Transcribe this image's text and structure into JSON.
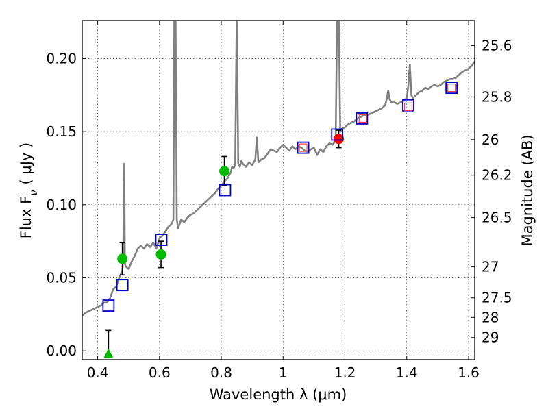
{
  "chart_data": {
    "type": "scatter",
    "xlabel": "Wavelength  λ (μm)",
    "ylabel": "Flux  F",
    "ylabel_sub": "ν",
    "ylabel_unit": "( μJy )",
    "y2label": "Magnitude (AB)",
    "xlim": [
      0.35,
      1.62
    ],
    "ylim": [
      -0.006,
      0.226
    ],
    "grid": true,
    "x_ticks": [
      0.4,
      0.6,
      0.8,
      1.0,
      1.2,
      1.4,
      1.6
    ],
    "x_tick_labels": [
      "0.4",
      "0.6",
      "0.8",
      "1",
      "1.2",
      "1.4",
      "1.6"
    ],
    "y_ticks": [
      0.0,
      0.05,
      0.1,
      0.15,
      0.2
    ],
    "y_tick_labels": [
      "0.00",
      "0.05",
      "0.10",
      "0.15",
      "0.20"
    ],
    "y2_tick_labels": [
      "25.6",
      "25.8",
      "26",
      "26.2",
      "26.5",
      "27",
      "27.5",
      "28",
      "29"
    ],
    "colors": {
      "spectrum": "#808080",
      "green": "#00bb00",
      "red": "#ff0000",
      "blue_square": "#0000cc",
      "red_square": "#ff4444",
      "errorbar": "#000000"
    },
    "series": [
      {
        "name": "model spectrum",
        "kind": "line",
        "x": [
          0.35,
          0.36,
          0.37,
          0.38,
          0.39,
          0.4,
          0.41,
          0.42,
          0.43,
          0.44,
          0.45,
          0.46,
          0.47,
          0.48,
          0.483,
          0.486,
          0.488,
          0.49,
          0.5,
          0.51,
          0.52,
          0.53,
          0.54,
          0.55,
          0.56,
          0.57,
          0.58,
          0.59,
          0.6,
          0.61,
          0.62,
          0.63,
          0.64,
          0.645,
          0.648,
          0.652,
          0.656,
          0.66,
          0.664,
          0.67,
          0.68,
          0.69,
          0.7,
          0.71,
          0.72,
          0.73,
          0.74,
          0.75,
          0.76,
          0.77,
          0.78,
          0.79,
          0.8,
          0.81,
          0.82,
          0.83,
          0.835,
          0.84,
          0.845,
          0.85,
          0.855,
          0.86,
          0.865,
          0.87,
          0.88,
          0.89,
          0.9,
          0.91,
          0.915,
          0.92,
          0.93,
          0.94,
          0.95,
          0.96,
          0.97,
          0.98,
          0.99,
          1.0,
          1.01,
          1.02,
          1.03,
          1.04,
          1.05,
          1.06,
          1.07,
          1.08,
          1.09,
          1.1,
          1.11,
          1.12,
          1.13,
          1.14,
          1.15,
          1.16,
          1.17,
          1.175,
          1.18,
          1.185,
          1.19,
          1.2,
          1.21,
          1.22,
          1.23,
          1.24,
          1.25,
          1.26,
          1.27,
          1.28,
          1.29,
          1.3,
          1.31,
          1.32,
          1.33,
          1.335,
          1.34,
          1.345,
          1.35,
          1.36,
          1.37,
          1.38,
          1.39,
          1.4,
          1.405,
          1.41,
          1.415,
          1.42,
          1.43,
          1.44,
          1.45,
          1.46,
          1.47,
          1.48,
          1.49,
          1.5,
          1.51,
          1.52,
          1.53,
          1.54,
          1.55,
          1.56,
          1.57,
          1.58,
          1.59,
          1.6,
          1.61,
          1.62
        ],
        "y": [
          0.024,
          0.026,
          0.027,
          0.028,
          0.029,
          0.03,
          0.031,
          0.033,
          0.033,
          0.036,
          0.042,
          0.044,
          0.05,
          0.055,
          0.07,
          0.128,
          0.06,
          0.058,
          0.056,
          0.061,
          0.065,
          0.07,
          0.072,
          0.07,
          0.073,
          0.071,
          0.074,
          0.07,
          0.077,
          0.079,
          0.082,
          0.085,
          0.087,
          0.09,
          0.23,
          0.23,
          0.09,
          0.084,
          0.086,
          0.09,
          0.088,
          0.091,
          0.093,
          0.094,
          0.096,
          0.098,
          0.1,
          0.102,
          0.104,
          0.106,
          0.108,
          0.111,
          0.113,
          0.116,
          0.118,
          0.122,
          0.126,
          0.125,
          0.127,
          0.23,
          0.128,
          0.126,
          0.13,
          0.128,
          0.126,
          0.129,
          0.127,
          0.131,
          0.146,
          0.129,
          0.131,
          0.132,
          0.135,
          0.138,
          0.137,
          0.136,
          0.139,
          0.141,
          0.139,
          0.137,
          0.14,
          0.138,
          0.14,
          0.139,
          0.137,
          0.136,
          0.138,
          0.139,
          0.134,
          0.138,
          0.136,
          0.14,
          0.142,
          0.141,
          0.144,
          0.23,
          0.23,
          0.15,
          0.152,
          0.153,
          0.155,
          0.156,
          0.157,
          0.159,
          0.16,
          0.161,
          0.161,
          0.162,
          0.163,
          0.164,
          0.165,
          0.166,
          0.168,
          0.172,
          0.178,
          0.172,
          0.17,
          0.17,
          0.169,
          0.17,
          0.171,
          0.173,
          0.181,
          0.196,
          0.175,
          0.173,
          0.175,
          0.177,
          0.178,
          0.18,
          0.179,
          0.181,
          0.182,
          0.181,
          0.182,
          0.184,
          0.185,
          0.186,
          0.186,
          0.187,
          0.189,
          0.191,
          0.192,
          0.193,
          0.195,
          0.198
        ]
      },
      {
        "name": "green detections",
        "kind": "points",
        "marker": "circle",
        "color": "#00bb00",
        "points": [
          {
            "x": 0.48,
            "y": 0.063,
            "yerr": 0.011
          },
          {
            "x": 0.605,
            "y": 0.066,
            "yerr": 0.009
          },
          {
            "x": 0.81,
            "y": 0.123,
            "yerr": 0.01
          }
        ]
      },
      {
        "name": "green upper limit",
        "kind": "points",
        "marker": "triangle",
        "color": "#00bb00",
        "points": [
          {
            "x": 0.435,
            "y": -0.002,
            "yerr_up": 0.016,
            "yerr_down": 0.0
          }
        ]
      },
      {
        "name": "red detection",
        "kind": "points",
        "marker": "circle",
        "color": "#ff0000",
        "points": [
          {
            "x": 1.18,
            "y": 0.145,
            "yerr": 0.006
          }
        ]
      },
      {
        "name": "model photometry (blue squares)",
        "kind": "points",
        "marker": "square",
        "color": "#0000cc",
        "points": [
          {
            "x": 0.435,
            "y": 0.031
          },
          {
            "x": 0.48,
            "y": 0.045
          },
          {
            "x": 0.606,
            "y": 0.076
          },
          {
            "x": 0.812,
            "y": 0.11
          },
          {
            "x": 1.065,
            "y": 0.139
          },
          {
            "x": 1.175,
            "y": 0.148
          },
          {
            "x": 1.255,
            "y": 0.159
          },
          {
            "x": 1.405,
            "y": 0.168
          },
          {
            "x": 1.545,
            "y": 0.18
          }
        ]
      },
      {
        "name": "model photometry (red squares)",
        "kind": "points",
        "marker": "square-small",
        "color": "#ff4444",
        "points": [
          {
            "x": 1.065,
            "y": 0.139
          },
          {
            "x": 1.258,
            "y": 0.159
          },
          {
            "x": 1.405,
            "y": 0.167
          },
          {
            "x": 1.545,
            "y": 0.18
          }
        ]
      }
    ]
  }
}
